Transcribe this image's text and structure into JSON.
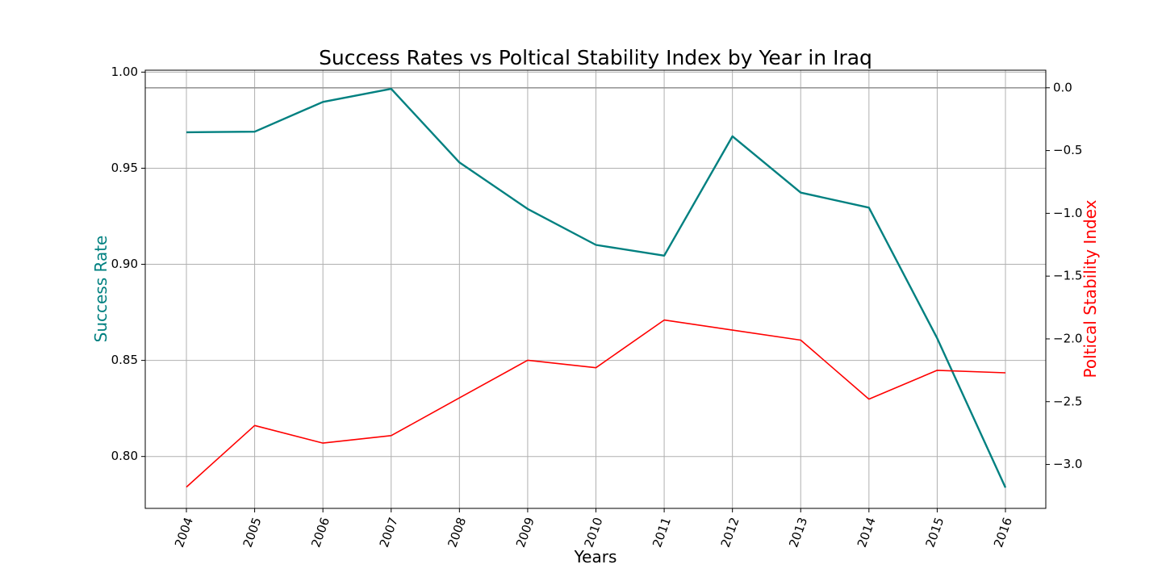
{
  "chart_data": {
    "type": "line",
    "title": "Success Rates vs Poltical Stability Index by Year in Iraq",
    "xlabel": "Years",
    "x": [
      "2004",
      "2005",
      "2006",
      "2007",
      "2008",
      "2009",
      "2010",
      "2011",
      "2012",
      "2013",
      "2014",
      "2015",
      "2016"
    ],
    "grid": true,
    "legend": "none",
    "y_left": {
      "label": "Success Rate",
      "color": "#008080",
      "ylim": [
        0.773,
        1.001
      ],
      "ticks": [
        "0.80",
        "0.85",
        "0.90",
        "0.95",
        "1.00"
      ],
      "values": [
        0.9687,
        0.969,
        0.9845,
        0.9913,
        0.953,
        0.9288,
        0.9101,
        0.9045,
        0.9666,
        0.9373,
        0.9295,
        0.8615,
        0.7838
      ]
    },
    "y_right": {
      "label": "Poltical Stability Index",
      "color": "#ff0000",
      "ylim": [
        -3.35,
        0.14
      ],
      "ticks": [
        "0.0",
        "−0.5",
        "−1.0",
        "−1.5",
        "−2.0",
        "−2.5",
        "−3.0"
      ],
      "values": [
        -3.18,
        -2.69,
        -2.83,
        -2.77,
        -2.47,
        -2.17,
        -2.23,
        -1.85,
        -1.93,
        -2.01,
        -2.48,
        -2.25,
        -2.27
      ]
    },
    "reference_line": {
      "axis": "right",
      "value": 0.0,
      "color": "#999999"
    }
  }
}
